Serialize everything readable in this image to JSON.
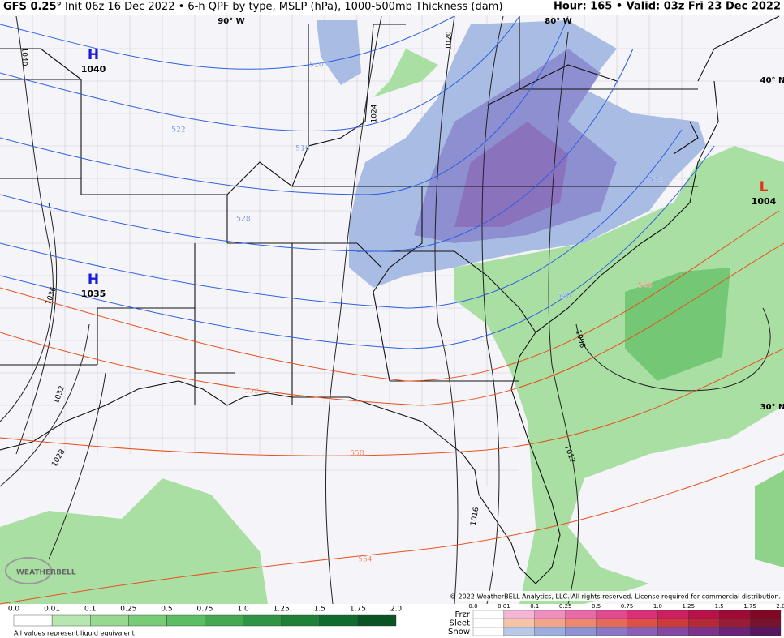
{
  "header": {
    "model": "GFS 0.25°",
    "description": "Init 06z 16 Dec 2022 • 6-h QPF by type, MSLP (hPa), 1000-500mb Thickness (dam)",
    "valid": "Hour: 165 • Valid: 03z Fri 23 Dec 2022"
  },
  "map": {
    "graticule": [
      "90° W",
      "80° W",
      "40° N",
      "30° N"
    ],
    "pressure_centers": [
      {
        "type": "H",
        "value": "1040"
      },
      {
        "type": "H",
        "value": "1035"
      },
      {
        "type": "L",
        "value": "1004"
      }
    ],
    "isobar_labels": [
      "1040",
      "1036",
      "1032",
      "1028",
      "1024",
      "1020",
      "1016",
      "1012",
      "1008"
    ],
    "thickness_labels": [
      "510",
      "522",
      "516",
      "528",
      "534",
      "540",
      "546",
      "552",
      "558",
      "564"
    ],
    "logo": "WEATHERBELL"
  },
  "legend": {
    "qpf": {
      "labels": [
        "0.0",
        "0.01",
        "0.1",
        "0.25",
        "0.5",
        "0.75",
        "1.0",
        "1.25",
        "1.5",
        "1.75",
        "2.0"
      ],
      "colors": [
        "#ffffff",
        "#b8e6b3",
        "#97d991",
        "#79cc76",
        "#5dbd62",
        "#44a951",
        "#2f9443",
        "#1f8038",
        "#0f6c2e",
        "#0a5423"
      ],
      "note": "All values represent liquid equivalent"
    },
    "ptype": {
      "labels": [
        "0.0",
        "0.01",
        "0.1",
        "0.25",
        "0.5",
        "0.75",
        "1.0",
        "1.25",
        "1.5",
        "1.75",
        "2.0"
      ],
      "rows": [
        {
          "name": "Frzr",
          "colors": [
            "#ffffff",
            "#f4b6d3",
            "#ef8fbd",
            "#e86aa6",
            "#e24a90",
            "#d9307a",
            "#cc2060",
            "#b8124a",
            "#a00a36",
            "#800824"
          ]
        },
        {
          "name": "Sleet",
          "colors": [
            "#ffffff",
            "#f5c3a8",
            "#f2a58a",
            "#ed876e",
            "#e66a58",
            "#dc5046",
            "#cc3a3a",
            "#b42a36",
            "#971e34",
            "#76142e"
          ]
        },
        {
          "name": "Snow",
          "colors": [
            "#ffffff",
            "#b7c9e6",
            "#9aaddc",
            "#8c93d0",
            "#8a79c2",
            "#8a60b2",
            "#8548a0",
            "#7a348c",
            "#6a2376",
            "#581560"
          ]
        }
      ]
    },
    "copyright": "© 2022 WeatherBELL Analytics, LLC. All rights reserved. License required for commercial distribution."
  }
}
